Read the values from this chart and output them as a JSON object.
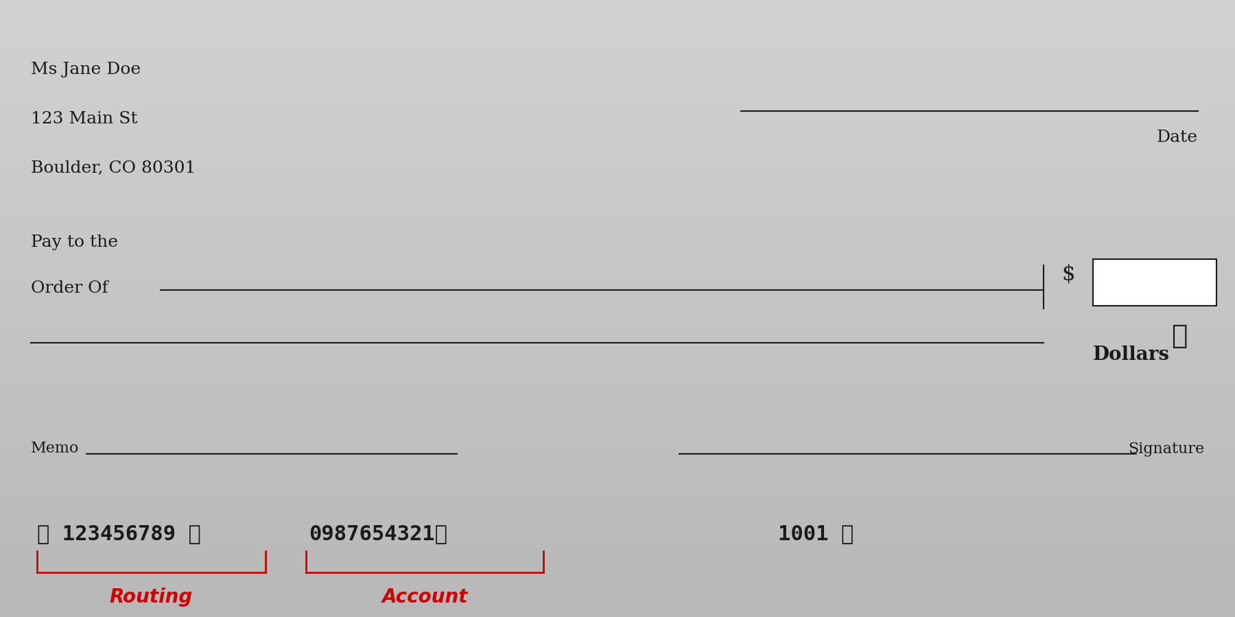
{
  "bg_color_top": "#c8c8c8",
  "bg_color_bottom": "#b0b0b0",
  "name_line1": "Ms Jane Doe",
  "name_line2": "123 Main St",
  "name_line3": "Boulder, CO 80301",
  "pay_to_line1": "Pay to the",
  "pay_to_line2": "Order Of",
  "date_label": "Date",
  "dollars_label": "Dollars",
  "dollar_sign": "$",
  "memo_label": "Memo",
  "signature_label": "Signature",
  "routing_number": "123456789",
  "account_number": "0987654321",
  "check_number": "1001",
  "routing_label": "Routing",
  "account_label": "Account",
  "text_color": "#1a1a1a",
  "red_color": "#cc0000",
  "white_color": "#ffffff"
}
